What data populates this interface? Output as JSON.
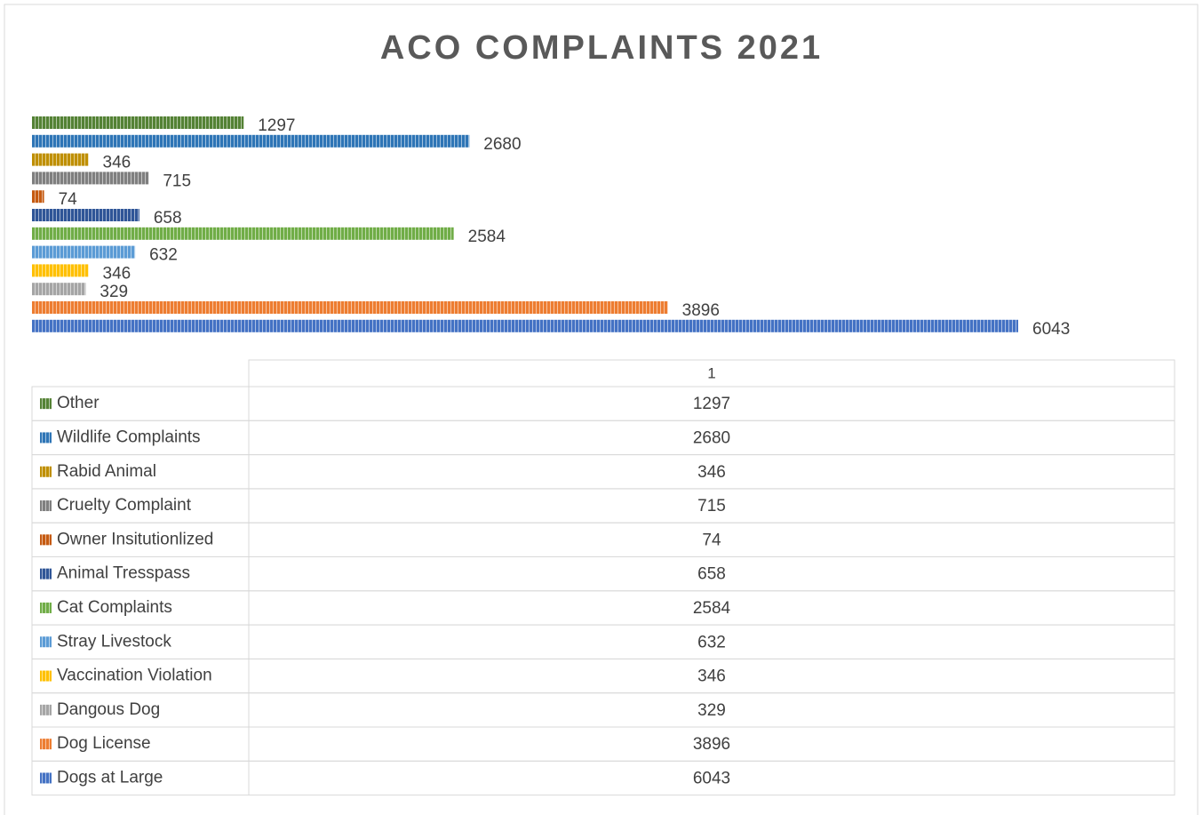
{
  "chart_data": {
    "type": "bar",
    "orientation": "horizontal",
    "title": "ACO COMPLAINTS 2021",
    "categories": [
      "1"
    ],
    "series": [
      {
        "name": "Other",
        "color": "#548235",
        "values": [
          1297
        ]
      },
      {
        "name": "Wildlife Complaints",
        "color": "#2e75b6",
        "values": [
          2680
        ]
      },
      {
        "name": "Rabid Animal",
        "color": "#bf8f00",
        "values": [
          346
        ]
      },
      {
        "name": "Cruelty Complaint",
        "color": "#7f7f7f",
        "values": [
          715
        ]
      },
      {
        "name": "Owner Insitutionlized",
        "color": "#c55a11",
        "values": [
          74
        ]
      },
      {
        "name": "Animal Tresspass",
        "color": "#2f5597",
        "values": [
          658
        ]
      },
      {
        "name": "Cat Complaints",
        "color": "#70ad47",
        "values": [
          2584
        ]
      },
      {
        "name": "Stray Livestock",
        "color": "#5b9bd5",
        "values": [
          632
        ]
      },
      {
        "name": "Vaccination Violation",
        "color": "#ffc000",
        "values": [
          346
        ]
      },
      {
        "name": "Dangous Dog",
        "color": "#a5a5a5",
        "values": [
          329
        ]
      },
      {
        "name": "Dog License",
        "color": "#ed7d31",
        "values": [
          3896
        ]
      },
      {
        "name": "Dogs at Large",
        "color": "#4472c4",
        "values": [
          6043
        ]
      }
    ],
    "data_labels": true,
    "data_table": true
  }
}
